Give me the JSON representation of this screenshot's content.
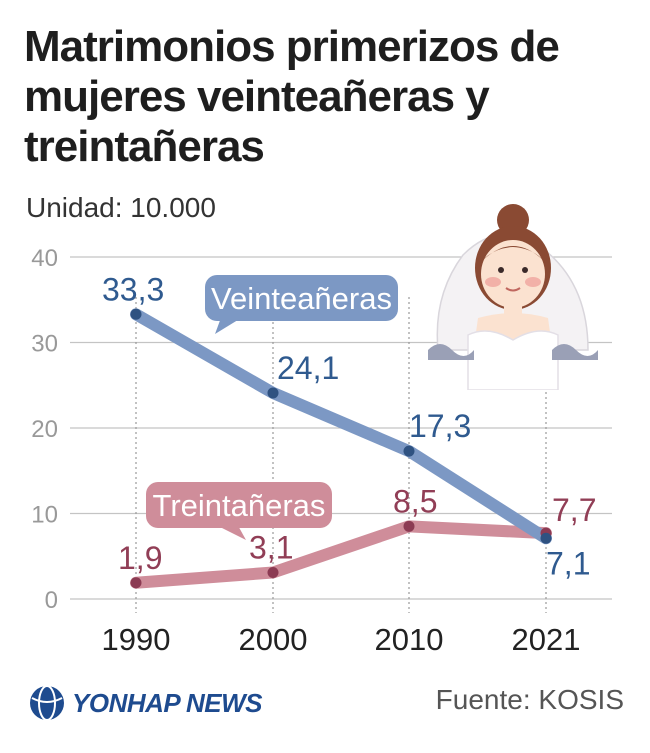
{
  "title_lines": [
    "Matrimonios primerizos de",
    "mujeres veinteañeras y",
    "treintañeras"
  ],
  "unit": "Unidad: 10.000",
  "source": "Fuente: KOSIS",
  "logo_text": "YONHAP NEWS",
  "colors": {
    "series_blue": "#7c98c4",
    "series_blue_dot": "#2f5281",
    "series_blue_label": "#2f5a8f",
    "series_red": "#cf8d9a",
    "series_red_dot": "#8c3b53",
    "series_red_label": "#913e56",
    "grid": "#c4c4c4",
    "axis_text": "#999999"
  },
  "chart_data": {
    "type": "line",
    "title": "Matrimonios primerizos de mujeres veinteañeras y treintañeras",
    "ylabel": "Unidad: 10.000",
    "xlabel": "",
    "categories": [
      "1990",
      "2000",
      "2010",
      "2021"
    ],
    "ylim": [
      0,
      40
    ],
    "yticks": [
      "0",
      "10",
      "20",
      "30",
      "40"
    ],
    "grid": true,
    "series": [
      {
        "name": "Veinteañeras",
        "values": [
          33.3,
          24.1,
          17.3,
          7.1
        ],
        "labels": [
          "33,3",
          "24,1",
          "17,3",
          "7,1"
        ]
      },
      {
        "name": "Treintañeras",
        "values": [
          1.9,
          3.1,
          8.5,
          7.7
        ],
        "labels": [
          "1,9",
          "3,1",
          "8,5",
          "7,7"
        ]
      }
    ]
  }
}
